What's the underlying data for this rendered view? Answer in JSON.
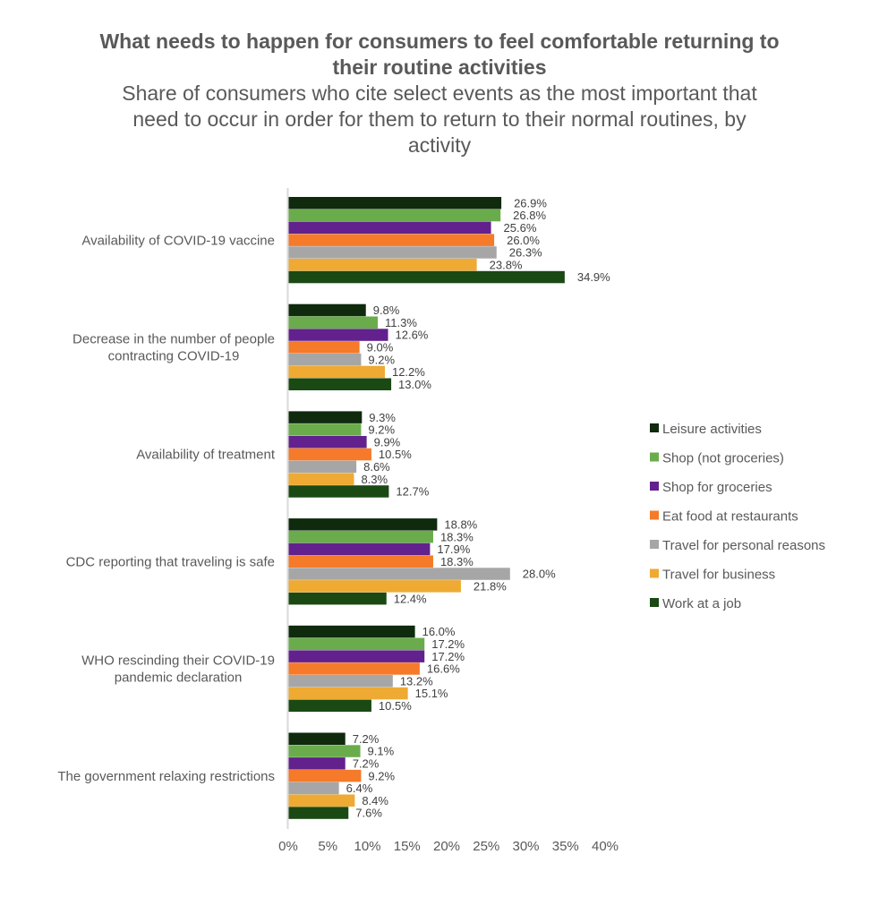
{
  "chart_data": {
    "type": "bar",
    "orientation": "horizontal",
    "title": "What needs to happen for consumers to feel comfortable returning to their routine activities",
    "subtitle": "Share of consumers who cite select events as the most important that need to occur in order for them to return to their normal routines, by activity",
    "xlabel": "",
    "ylabel": "",
    "xlim": [
      0,
      40
    ],
    "x_ticks": [
      "0%",
      "5%",
      "10%",
      "15%",
      "20%",
      "25%",
      "30%",
      "35%",
      "40%"
    ],
    "grid": false,
    "legend_position": "right",
    "categories": [
      [
        "Availability of COVID-19 vaccine"
      ],
      [
        "Decrease in the number of people",
        "contracting COVID-19"
      ],
      [
        "Availability of treatment"
      ],
      [
        "CDC reporting that traveling is safe"
      ],
      [
        "WHO rescinding their COVID-19",
        "pandemic declaration"
      ],
      [
        "The government relaxing restrictions"
      ]
    ],
    "series": [
      {
        "name": "Leisure activities",
        "color": "#0f2a0d",
        "values": [
          26.9,
          9.8,
          9.3,
          18.8,
          16.0,
          7.2
        ]
      },
      {
        "name": "Shop (not groceries)",
        "color": "#6aac4c",
        "values": [
          26.8,
          11.3,
          9.2,
          18.3,
          17.2,
          9.1
        ]
      },
      {
        "name": "Shop for groceries",
        "color": "#62218d",
        "values": [
          25.6,
          12.6,
          9.9,
          17.9,
          17.2,
          7.2
        ]
      },
      {
        "name": "Eat food at restaurants",
        "color": "#f57a29",
        "values": [
          26.0,
          9.0,
          10.5,
          18.3,
          16.6,
          9.2
        ]
      },
      {
        "name": "Travel for personal reasons",
        "color": "#a6a6a6",
        "values": [
          26.3,
          9.2,
          8.6,
          28.0,
          13.2,
          6.4
        ]
      },
      {
        "name": "Travel for business",
        "color": "#eeaa33",
        "values": [
          23.8,
          12.2,
          8.3,
          21.8,
          15.1,
          8.4
        ]
      },
      {
        "name": "Work at a job",
        "color": "#1a4914",
        "values": [
          34.9,
          13.0,
          12.7,
          12.4,
          10.5,
          7.6
        ]
      }
    ],
    "value_suffix": "%"
  }
}
